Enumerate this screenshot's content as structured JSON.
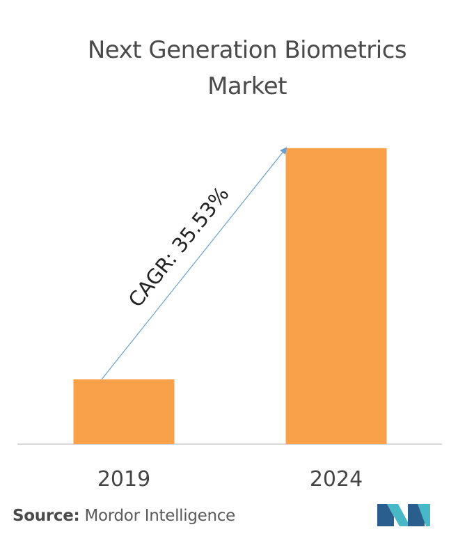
{
  "chart_data": {
    "type": "bar",
    "title_lines": [
      "Next Generation Biometrics",
      "Market"
    ],
    "categories": [
      "2019",
      "2024"
    ],
    "values": [
      1.0,
      4.57
    ],
    "ylim": [
      0,
      4.6
    ],
    "annotation": "CAGR: 35.53%",
    "grid": false,
    "colors": {
      "bar": "#F9A04A",
      "arrow": "#6A9FD0",
      "axis": "#cccccc",
      "title": "#4a4a4a"
    }
  },
  "source": {
    "label": "Source:",
    "text": "Mordor Intelligence"
  },
  "logo": {
    "icon": "mordor-intelligence-logo-icon",
    "colors": [
      "#2A5E8C",
      "#48B8C6"
    ]
  }
}
